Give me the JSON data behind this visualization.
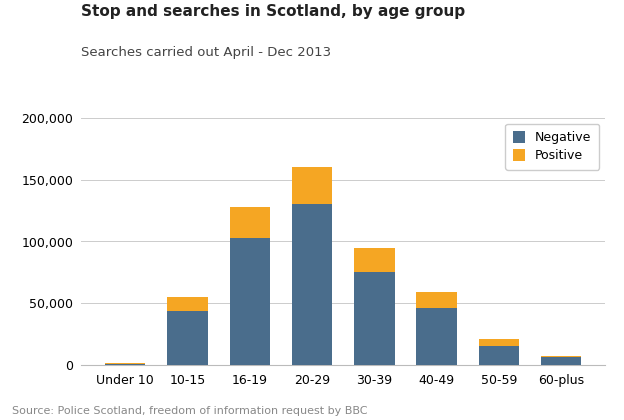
{
  "categories": [
    "Under 10",
    "10-15",
    "16-19",
    "20-29",
    "30-39",
    "40-49",
    "50-59",
    "60-plus"
  ],
  "negative": [
    1000,
    44000,
    103000,
    130000,
    75000,
    46000,
    16000,
    6500
  ],
  "positive": [
    1000,
    11000,
    25000,
    30000,
    20000,
    13000,
    5000,
    1000
  ],
  "negative_color": "#4a6d8c",
  "positive_color": "#f5a623",
  "title": "Stop and searches in Scotland, by age group",
  "subtitle": "Searches carried out April - Dec 2013",
  "source": "Source: Police Scotland, freedom of information request by BBC",
  "legend_labels": [
    "Negative",
    "Positive"
  ],
  "ylim": [
    0,
    200000
  ],
  "yticks": [
    0,
    50000,
    100000,
    150000,
    200000
  ],
  "background_color": "#ffffff",
  "title_fontsize": 11,
  "subtitle_fontsize": 9.5,
  "source_fontsize": 8,
  "tick_fontsize": 9,
  "legend_fontsize": 9
}
